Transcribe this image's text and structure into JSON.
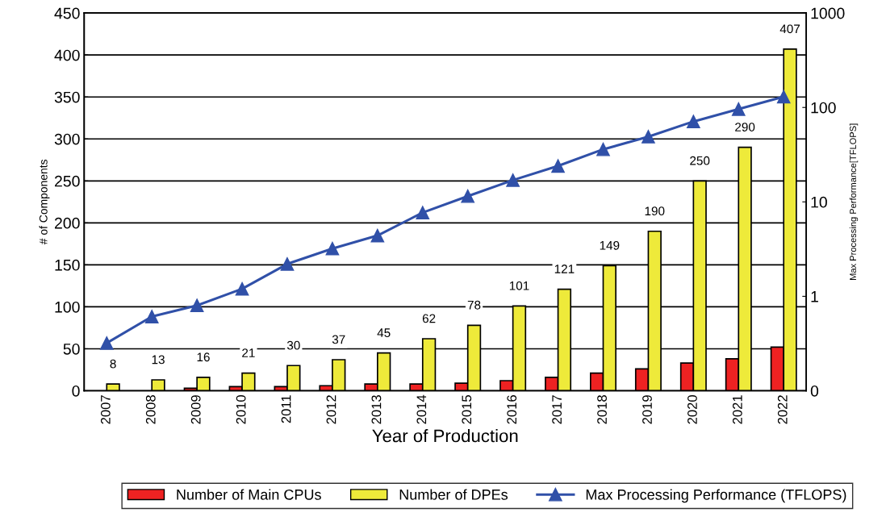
{
  "chart_data": {
    "type": "bar",
    "xlabel": "Year of Production",
    "ylabel": "# of Components",
    "y2label": "Max Processing Performance[TFLOPS]",
    "categories": [
      "2007",
      "2008",
      "2009",
      "2010",
      "2011",
      "2012",
      "2013",
      "2014",
      "2015",
      "2016",
      "2017",
      "2018",
      "2019",
      "2020",
      "2021",
      "2022"
    ],
    "series": [
      {
        "name": "Number of Main CPUs",
        "color": "#ee2222",
        "values": [
          null,
          null,
          3,
          5,
          5,
          6,
          8,
          8,
          9,
          12,
          16,
          21,
          26,
          33,
          38,
          52
        ]
      },
      {
        "name": "Number of DPEs",
        "color": "#eeea3a",
        "values": [
          8,
          13,
          16,
          21,
          30,
          37,
          45,
          62,
          78,
          101,
          121,
          149,
          190,
          250,
          290,
          407
        ],
        "value_labels": [
          "8",
          "13",
          "16",
          "21",
          "30",
          "37",
          "45",
          "62",
          "78",
          "101",
          "121",
          "149",
          "190",
          "250",
          "290",
          "407"
        ]
      },
      {
        "name": "Max Processing Performance (TFLOPS)",
        "type": "line",
        "axis": "y2",
        "color": "#3050a8",
        "marker": "triangle",
        "values": [
          0.32,
          0.61,
          0.8,
          1.2,
          2.2,
          3.2,
          4.4,
          7.7,
          11.5,
          17,
          24,
          36,
          49,
          71,
          96,
          130
        ]
      }
    ],
    "ylim": [
      0,
      450
    ],
    "yticks": [
      0,
      50,
      100,
      150,
      200,
      250,
      300,
      350,
      400,
      450
    ],
    "y2lim": [
      0.1,
      1000
    ],
    "y2ticks": [
      {
        "value": 0.1,
        "label": "0"
      },
      1,
      10,
      100,
      1000
    ],
    "log": "y2",
    "grid": "y",
    "legend": "bottom"
  }
}
